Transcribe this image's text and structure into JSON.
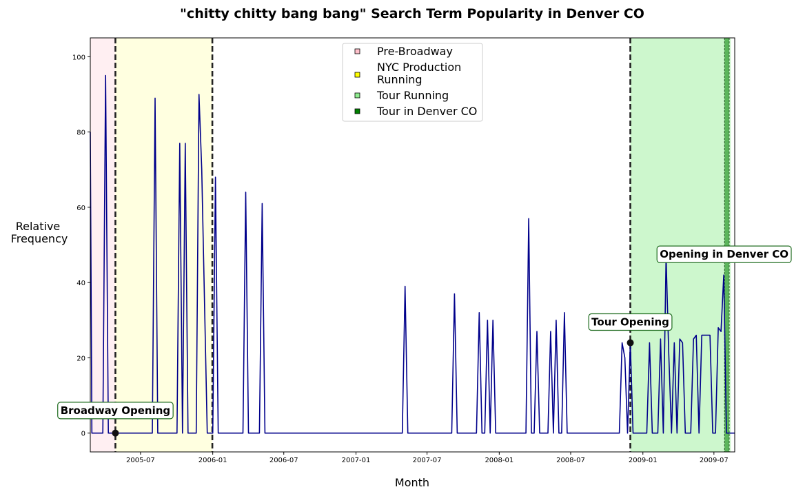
{
  "chart_data": {
    "type": "line",
    "title": "\"chitty chitty bang bang\" Search Term Popularity in Denver CO",
    "xlabel": "Month",
    "ylabel_line1": "Relative",
    "ylabel_line2": "Frequency",
    "x_ticks": [
      "2005-07",
      "2006-01",
      "2006-07",
      "2007-01",
      "2007-07",
      "2008-01",
      "2008-07",
      "2009-01",
      "2009-07"
    ],
    "y_ticks": [
      0,
      20,
      40,
      60,
      80,
      100
    ],
    "xlim": [
      "2005-02-23",
      "2009-08-23"
    ],
    "ylim": [
      -5,
      105
    ],
    "grid": false,
    "legend_position": "top-center",
    "line_color": "#00008b",
    "series": [
      {
        "points": [
          [
            "2005-02-23",
            80
          ],
          [
            "2005-02-27",
            0
          ],
          [
            "2005-03-27",
            0
          ],
          [
            "2005-04-03",
            95
          ],
          [
            "2005-04-10",
            0
          ],
          [
            "2005-07-31",
            0
          ],
          [
            "2005-08-07",
            89
          ],
          [
            "2005-08-14",
            0
          ],
          [
            "2005-10-02",
            0
          ],
          [
            "2005-10-09",
            77
          ],
          [
            "2005-10-16",
            0
          ],
          [
            "2005-10-23",
            77
          ],
          [
            "2005-10-30",
            0
          ],
          [
            "2005-11-20",
            0
          ],
          [
            "2005-11-27",
            90
          ],
          [
            "2005-12-04",
            70
          ],
          [
            "2005-12-18",
            0
          ],
          [
            "2006-01-01",
            0
          ],
          [
            "2006-01-08",
            68
          ],
          [
            "2006-01-15",
            0
          ],
          [
            "2006-03-19",
            0
          ],
          [
            "2006-03-26",
            64
          ],
          [
            "2006-04-02",
            0
          ],
          [
            "2006-04-30",
            0
          ],
          [
            "2006-05-07",
            61
          ],
          [
            "2006-05-14",
            0
          ],
          [
            "2007-04-29",
            0
          ],
          [
            "2007-05-06",
            39
          ],
          [
            "2007-05-13",
            0
          ],
          [
            "2007-09-02",
            0
          ],
          [
            "2007-09-09",
            37
          ],
          [
            "2007-09-16",
            0
          ],
          [
            "2007-11-04",
            0
          ],
          [
            "2007-11-11",
            32
          ],
          [
            "2007-11-18",
            0
          ],
          [
            "2007-11-25",
            0
          ],
          [
            "2007-12-02",
            30
          ],
          [
            "2007-12-09",
            0
          ],
          [
            "2007-12-16",
            30
          ],
          [
            "2007-12-23",
            0
          ],
          [
            "2008-03-09",
            0
          ],
          [
            "2008-03-16",
            57
          ],
          [
            "2008-03-23",
            0
          ],
          [
            "2008-03-30",
            0
          ],
          [
            "2008-04-06",
            27
          ],
          [
            "2008-04-13",
            0
          ],
          [
            "2008-05-04",
            0
          ],
          [
            "2008-05-11",
            27
          ],
          [
            "2008-05-18",
            0
          ],
          [
            "2008-05-25",
            30
          ],
          [
            "2008-06-01",
            0
          ],
          [
            "2008-06-08",
            0
          ],
          [
            "2008-06-15",
            32
          ],
          [
            "2008-06-22",
            0
          ],
          [
            "2008-11-02",
            0
          ],
          [
            "2008-11-09",
            24
          ],
          [
            "2008-11-16",
            20
          ],
          [
            "2008-11-23",
            0
          ],
          [
            "2008-11-30",
            24
          ],
          [
            "2008-12-07",
            0
          ],
          [
            "2009-01-11",
            0
          ],
          [
            "2009-01-18",
            24
          ],
          [
            "2009-01-25",
            0
          ],
          [
            "2009-02-08",
            0
          ],
          [
            "2009-02-15",
            25
          ],
          [
            "2009-02-22",
            0
          ],
          [
            "2009-03-01",
            47
          ],
          [
            "2009-03-08",
            21
          ],
          [
            "2009-03-15",
            0
          ],
          [
            "2009-03-22",
            24
          ],
          [
            "2009-03-29",
            0
          ],
          [
            "2009-04-05",
            25
          ],
          [
            "2009-04-12",
            24
          ],
          [
            "2009-04-19",
            0
          ],
          [
            "2009-05-03",
            0
          ],
          [
            "2009-05-10",
            25
          ],
          [
            "2009-05-17",
            26
          ],
          [
            "2009-05-24",
            0
          ],
          [
            "2009-05-31",
            26
          ],
          [
            "2009-06-21",
            26
          ],
          [
            "2009-06-28",
            0
          ],
          [
            "2009-07-05",
            0
          ],
          [
            "2009-07-12",
            28
          ],
          [
            "2009-07-19",
            27
          ],
          [
            "2009-07-26",
            42
          ],
          [
            "2009-08-02",
            0
          ],
          [
            "2009-08-23",
            0
          ]
        ]
      }
    ],
    "spans": [
      {
        "label": "Pre-Broadway",
        "start": "2005-02-23",
        "end": "2005-04-28",
        "color": "#ffc0cb",
        "opacity": 0.25
      },
      {
        "label": "NYC Production Running",
        "start": "2005-04-28",
        "end": "2005-12-31",
        "color": "#ffff00",
        "opacity": 0.12
      },
      {
        "label": "Tour Running",
        "start": "2008-11-30",
        "end": "2009-08-13",
        "color": "#90ee90",
        "opacity": 0.45
      },
      {
        "label": "Tour in Denver CO",
        "start": "2009-07-28",
        "end": "2009-08-09",
        "color": "#008000",
        "opacity": 0.55
      }
    ],
    "vlines": [
      {
        "date": "2005-04-28",
        "style": "thick-dashed"
      },
      {
        "date": "2005-12-31",
        "style": "thick-dashed"
      },
      {
        "date": "2008-11-30",
        "style": "thick-dashed"
      },
      {
        "date": "2009-07-28",
        "style": "thin-dashed"
      },
      {
        "date": "2009-08-09",
        "style": "thin-dashed"
      }
    ],
    "markers": [
      {
        "date": "2005-04-28",
        "y": 0
      },
      {
        "date": "2008-11-30",
        "y": 24
      }
    ],
    "annotations": [
      {
        "text": "Broadway Opening",
        "date": "2005-04-28",
        "y": 6
      },
      {
        "text": "Tour Opening",
        "date": "2008-11-30",
        "y": 29.5
      },
      {
        "text": "Opening in Denver CO",
        "date": "2009-08-04",
        "y": 47.5
      }
    ]
  }
}
